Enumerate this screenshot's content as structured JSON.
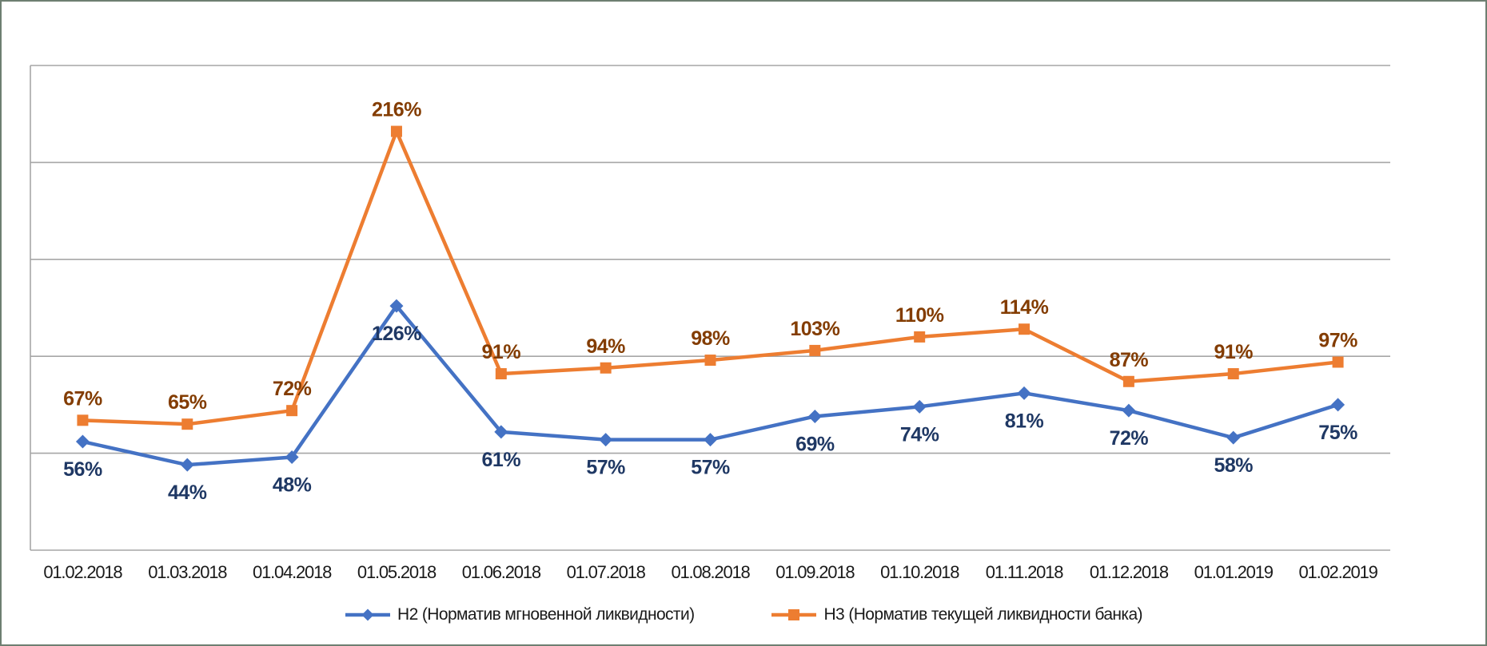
{
  "chart_data": {
    "type": "line",
    "title": "",
    "xlabel": "",
    "ylabel": "",
    "categories": [
      "01.02.2018",
      "01.03.2018",
      "01.04.2018",
      "01.05.2018",
      "01.06.2018",
      "01.07.2018",
      "01.08.2018",
      "01.09.2018",
      "01.10.2018",
      "01.11.2018",
      "01.12.2018",
      "01.01.2019",
      "01.02.2019"
    ],
    "series": [
      {
        "id": "h2",
        "name": "Н2 (Норматив мгновенной ликвидности)",
        "values": [
          56,
          44,
          48,
          126,
          61,
          57,
          57,
          69,
          74,
          81,
          72,
          58,
          75
        ],
        "color": "#4472C4",
        "label_color": "#1F3864",
        "marker": "diamond",
        "label_position": "below"
      },
      {
        "id": "h3",
        "name": "Н3 (Норматив текущей ликвидности банка)",
        "values": [
          67,
          65,
          72,
          216,
          91,
          94,
          98,
          103,
          110,
          114,
          87,
          91,
          97
        ],
        "color": "#ED7D31",
        "label_color": "#833C00",
        "marker": "square",
        "label_position": "above"
      }
    ],
    "value_suffix": "%",
    "ylim": [
      0,
      250
    ],
    "grid_step": 50,
    "grid": true,
    "y_axis_labels_visible": false,
    "legend_position": "bottom"
  },
  "colors": {
    "grid": "#A6A6A6",
    "axis_text": "#1A1A1A",
    "frame_border": "#6E7F71",
    "background": "#FFFFFF"
  }
}
